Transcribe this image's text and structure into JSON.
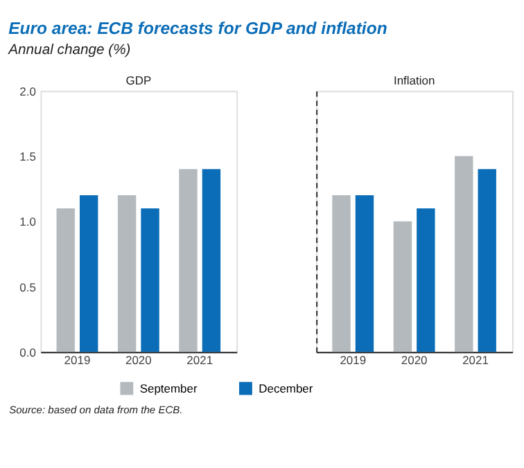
{
  "chart_data": [
    {
      "type": "bar",
      "title": "Euro area: ECB forecasts for GDP and inflation",
      "subtitle": "Annual change (%)",
      "annotations": [
        "GDP",
        "Source: based on data from the ECB."
      ],
      "categories": [
        "2019",
        "2020",
        "2021"
      ],
      "series": [
        {
          "name": "September",
          "color": "#b3b9bd",
          "values": [
            1.1,
            1.2,
            1.4
          ]
        },
        {
          "name": "December",
          "color": "#0b6db7",
          "values": [
            1.2,
            1.1,
            1.4
          ]
        }
      ],
      "ylim": [
        0,
        2
      ],
      "yticks": [
        {
          "value": 0,
          "label": "0.0"
        },
        {
          "value": 0.5,
          "label": "0.5"
        },
        {
          "value": 1,
          "label": "1.0"
        },
        {
          "value": 1.5,
          "label": "1.5"
        },
        {
          "value": 2,
          "label": "2.0"
        }
      ],
      "legend": "bottom",
      "grid": false
    },
    {
      "type": "bar",
      "annotations": [
        "Inflation"
      ],
      "categories": [
        "2019",
        "2020",
        "2021"
      ],
      "series": [
        {
          "name": "September",
          "color": "#b3b9bd",
          "values": [
            1.2,
            1.0,
            1.5
          ]
        },
        {
          "name": "December",
          "color": "#0b6db7",
          "values": [
            1.2,
            1.1,
            1.4
          ]
        }
      ],
      "ylim": [
        0,
        2
      ],
      "tick_labels": "x",
      "grid": false
    }
  ]
}
